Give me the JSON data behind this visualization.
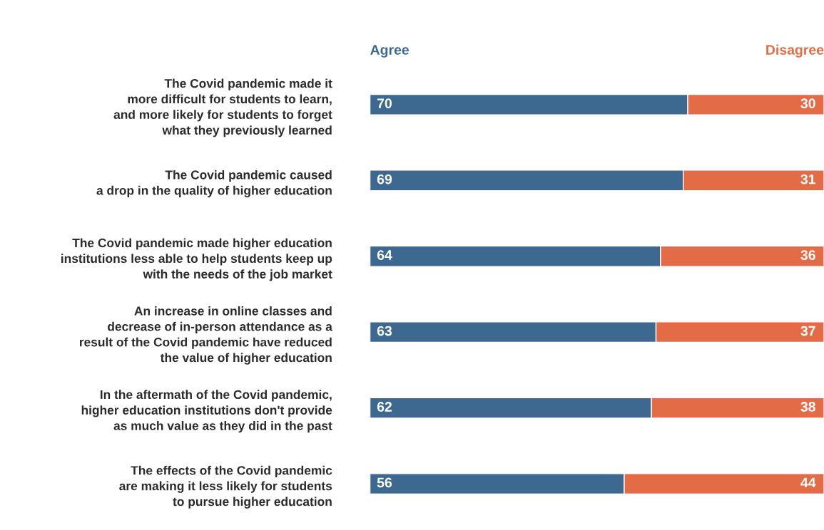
{
  "chart_data": {
    "type": "bar",
    "orientation": "horizontal",
    "stacked": true,
    "data_labels": true,
    "legend": false,
    "grid": false,
    "categories": [
      "The Covid pandemic made it\nmore difficult for students to learn,\nand more likely for students to forget\nwhat they previously learned",
      "The Covid pandemic caused\na drop in the quality of higher education",
      "The Covid pandemic made higher education\ninstitutions less able to help students keep up\nwith the needs of the job market",
      "An increase in online classes and\ndecrease of in-person attendance as a\nresult of the Covid pandemic have reduced\nthe value of higher education",
      "In the aftermath of the Covid pandemic,\nhigher education institutions don't provide\nas much value as they did in the past",
      "The effects of the Covid pandemic\nare making it less likely for students\nto pursue higher education"
    ],
    "series": [
      {
        "name": "Agree",
        "color": "#3d6990",
        "values": [
          70,
          69,
          64,
          63,
          62,
          56
        ]
      },
      {
        "name": "Disagree",
        "color": "#e36c47",
        "values": [
          30,
          31,
          36,
          37,
          38,
          44
        ]
      }
    ]
  }
}
